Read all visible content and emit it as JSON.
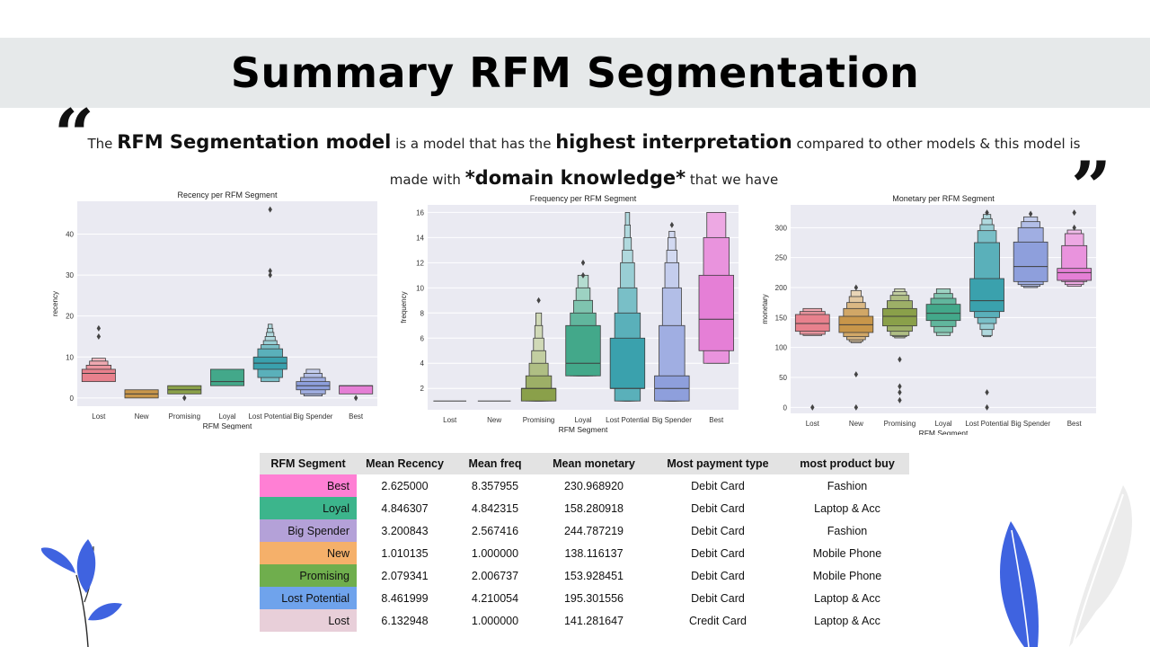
{
  "slide": {
    "title": "Summary RFM Segmentation",
    "quote_open": "“",
    "quote_close": "”",
    "quote_line1": {
      "t1": "The",
      "b1": "RFM Segmentation model",
      "t2": "is a model that has the",
      "b2": "highest interpretation",
      "t3": "compared to other models & this model is"
    },
    "quote_line2": {
      "t1": "made with",
      "b1": "*domain knowledge*",
      "t2": "that we have"
    }
  },
  "chart_data": [
    {
      "type": "boxen",
      "title": "Recency per RFM Segment",
      "xlabel": "RFM Segment",
      "ylabel": "recency",
      "categories": [
        "Lost",
        "New",
        "Promising",
        "Loyal",
        "Lost Potential",
        "Big Spender",
        "Best"
      ],
      "colors": [
        "#e8818d",
        "#c8964a",
        "#8aa04a",
        "#43a88a",
        "#3aa1ad",
        "#8e9fdc",
        "#e57fd6"
      ],
      "ylim": [
        -2,
        48
      ],
      "yticks": [
        0,
        10,
        20,
        30,
        40
      ],
      "grid": true,
      "series": [
        {
          "name": "Lost",
          "boxes": [
            [
              4,
              7
            ],
            [
              7,
              8
            ],
            [
              8,
              9
            ],
            [
              9,
              9.7
            ]
          ],
          "median": 6,
          "outliers": [
            15,
            17
          ]
        },
        {
          "name": "New",
          "boxes": [
            [
              0,
              2
            ]
          ],
          "median": 1,
          "outliers": []
        },
        {
          "name": "Promising",
          "boxes": [
            [
              1,
              3
            ]
          ],
          "median": 2,
          "outliers": [
            0
          ]
        },
        {
          "name": "Loyal",
          "boxes": [
            [
              3,
              7
            ]
          ],
          "median": 4,
          "outliers": []
        },
        {
          "name": "Lost Potential",
          "boxes": [
            [
              7,
              10
            ],
            [
              5,
              12
            ],
            [
              4,
              13
            ],
            [
              4,
              14
            ],
            [
              5,
              15
            ],
            [
              5.5,
              16
            ],
            [
              6,
              17
            ],
            [
              6.5,
              18
            ]
          ],
          "median": 8.5,
          "outliers": [
            30,
            31,
            46
          ]
        },
        {
          "name": "Big Spender",
          "boxes": [
            [
              2,
              4
            ],
            [
              1,
              5
            ],
            [
              0.5,
              6
            ],
            [
              0.5,
              7
            ]
          ],
          "median": 3,
          "outliers": []
        },
        {
          "name": "Best",
          "boxes": [
            [
              1,
              3
            ]
          ],
          "median": 3,
          "outliers": [
            0
          ]
        }
      ]
    },
    {
      "type": "boxen",
      "title": "Frequency per RFM Segment",
      "xlabel": "RFM Segment",
      "ylabel": "frequency",
      "categories": [
        "Lost",
        "New",
        "Promising",
        "Loyal",
        "Lost Potential",
        "Big Spender",
        "Best"
      ],
      "colors": [
        "#e8818d",
        "#c8964a",
        "#8aa04a",
        "#43a88a",
        "#3aa1ad",
        "#8e9fdc",
        "#e57fd6"
      ],
      "ylim": [
        0.3,
        16.6
      ],
      "yticks": [
        2,
        4,
        6,
        8,
        10,
        12,
        14,
        16
      ],
      "grid": true,
      "series": [
        {
          "name": "Lost",
          "boxes": [],
          "median": 1,
          "outliers": []
        },
        {
          "name": "New",
          "boxes": [],
          "median": 1,
          "outliers": []
        },
        {
          "name": "Promising",
          "boxes": [
            [
              1,
              2
            ],
            [
              1,
              3
            ],
            [
              1,
              4
            ],
            [
              1,
              5
            ],
            [
              1,
              6
            ],
            [
              1,
              7
            ],
            [
              1,
              8
            ]
          ],
          "median": 2,
          "outliers": [
            9
          ]
        },
        {
          "name": "Loyal",
          "boxes": [
            [
              3,
              7
            ],
            [
              3,
              8
            ],
            [
              3,
              9
            ],
            [
              3,
              10
            ],
            [
              3,
              11
            ]
          ],
          "median": 4,
          "outliers": [
            11,
            12
          ]
        },
        {
          "name": "Lost Potential",
          "boxes": [
            [
              2,
              6
            ],
            [
              1,
              8
            ],
            [
              1,
              10
            ],
            [
              1,
              12
            ],
            [
              1,
              13
            ],
            [
              1,
              14
            ],
            [
              1,
              15
            ],
            [
              1,
              16
            ]
          ],
          "median": 2,
          "outliers": []
        },
        {
          "name": "Big Spender",
          "boxes": [
            [
              1,
              3
            ],
            [
              1,
              7
            ],
            [
              1,
              10
            ],
            [
              1,
              12
            ],
            [
              1,
              13
            ],
            [
              1,
              14
            ],
            [
              1,
              14.5
            ]
          ],
          "median": 2,
          "outliers": [
            15
          ]
        },
        {
          "name": "Best",
          "boxes": [
            [
              5,
              11
            ],
            [
              4,
              14
            ],
            [
              4,
              16
            ]
          ],
          "median": 7.5,
          "outliers": []
        }
      ]
    },
    {
      "type": "boxen",
      "title": "Monetary per RFM Segment",
      "xlabel": "RFM Segment",
      "ylabel": "monetary",
      "categories": [
        "Lost",
        "New",
        "Promising",
        "Loyal",
        "Lost Potential",
        "Big Spender",
        "Best"
      ],
      "colors": [
        "#e8818d",
        "#c8964a",
        "#8aa04a",
        "#43a88a",
        "#3aa1ad",
        "#8e9fdc",
        "#e57fd6"
      ],
      "ylim": [
        -10,
        338
      ],
      "yticks": [
        0,
        50,
        100,
        150,
        200,
        250,
        300
      ],
      "grid": true,
      "series": [
        {
          "name": "Lost",
          "boxes": [
            [
              127,
              155
            ],
            [
              122,
              160
            ],
            [
              120,
              165
            ]
          ],
          "median": 140,
          "outliers": [
            0
          ]
        },
        {
          "name": "New",
          "boxes": [
            [
              125,
              152
            ],
            [
              118,
              165
            ],
            [
              113,
              175
            ],
            [
              110,
              185
            ],
            [
              108,
              195
            ]
          ],
          "median": 138,
          "outliers": [
            55,
            0,
            200
          ]
        },
        {
          "name": "Promising",
          "boxes": [
            [
              136,
              165
            ],
            [
              127,
              178
            ],
            [
              120,
              187
            ],
            [
              118,
              193
            ],
            [
              116,
              198
            ]
          ],
          "median": 152,
          "outliers": [
            80,
            35,
            25,
            12
          ]
        },
        {
          "name": "Loyal",
          "boxes": [
            [
              145,
              172
            ],
            [
              135,
              182
            ],
            [
              125,
              190
            ],
            [
              120,
              198
            ]
          ],
          "median": 157,
          "outliers": []
        },
        {
          "name": "Lost Potential",
          "boxes": [
            [
              160,
              215
            ],
            [
              150,
              275
            ],
            [
              140,
              295
            ],
            [
              130,
              305
            ],
            [
              120,
              315
            ],
            [
              118,
              322
            ]
          ],
          "median": 178,
          "outliers": [
            25,
            0,
            325
          ]
        },
        {
          "name": "Big Spender",
          "boxes": [
            [
              210,
              276
            ],
            [
              205,
              300
            ],
            [
              202,
              310
            ],
            [
              200,
              318
            ]
          ],
          "median": 235,
          "outliers": [
            323
          ]
        },
        {
          "name": "Best",
          "boxes": [
            [
              212,
              232
            ],
            [
              210,
              270
            ],
            [
              205,
              290
            ],
            [
              202,
              296
            ]
          ],
          "median": 225,
          "outliers": [
            300,
            325
          ]
        }
      ]
    },
    {
      "type": "table",
      "columns": [
        "RFM Segment",
        "Mean Recency",
        "Mean freq",
        "Mean monetary",
        "Most payment type",
        "most product buy"
      ],
      "rows": [
        {
          "segment": "Best",
          "color": "#ff7fd4",
          "values": [
            "2.625000",
            "8.357955",
            "230.968920",
            "Debit Card",
            "Fashion"
          ]
        },
        {
          "segment": "Loyal",
          "color": "#3cb58c",
          "values": [
            "4.846307",
            "4.842315",
            "158.280918",
            "Debit Card",
            "Laptop  & Acc"
          ]
        },
        {
          "segment": "Big Spender",
          "color": "#b4a1d8",
          "values": [
            "3.200843",
            "2.567416",
            "244.787219",
            "Debit Card",
            "Fashion"
          ]
        },
        {
          "segment": "New",
          "color": "#f5b06a",
          "values": [
            "1.010135",
            "1.000000",
            "138.116137",
            "Debit Card",
            "Mobile Phone"
          ]
        },
        {
          "segment": "Promising",
          "color": "#6fae4d",
          "values": [
            "2.079341",
            "2.006737",
            "153.928451",
            "Debit Card",
            "Mobile Phone"
          ]
        },
        {
          "segment": "Lost Potential",
          "color": "#6fa3ec",
          "values": [
            "8.461999",
            "4.210054",
            "195.301556",
            "Debit Card",
            "Laptop  & Acc"
          ]
        },
        {
          "segment": "Lost",
          "color": "#e8cfd9",
          "values": [
            "6.132948",
            "1.000000",
            "141.281647",
            "Credit Card",
            "Laptop  & Acc"
          ]
        }
      ]
    }
  ]
}
